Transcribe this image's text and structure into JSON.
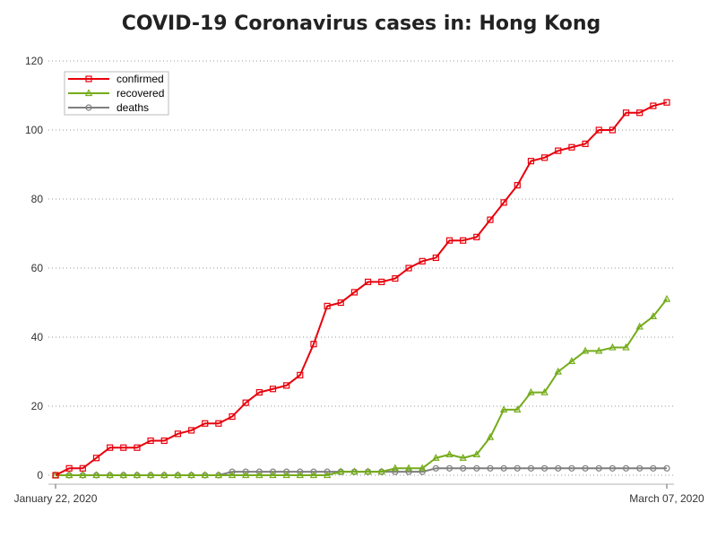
{
  "chart_data": {
    "type": "line",
    "title": "COVID-19 Coronavirus cases in: Hong Kong",
    "xlabel": "",
    "ylabel": "",
    "x_tick_labels": [
      "January 22, 2020",
      "March 07, 2020"
    ],
    "x_count": 46,
    "ylim": [
      0,
      120
    ],
    "yticks": [
      0,
      20,
      40,
      60,
      80,
      100,
      120
    ],
    "grid": "horizontal-dotted",
    "legend_position": "top-left",
    "series": [
      {
        "name": "confirmed",
        "color": "#e8000b",
        "marker": "square",
        "values": [
          0,
          2,
          2,
          5,
          8,
          8,
          8,
          10,
          10,
          12,
          13,
          15,
          15,
          17,
          21,
          24,
          25,
          26,
          29,
          38,
          49,
          50,
          53,
          56,
          56,
          57,
          60,
          62,
          63,
          68,
          68,
          69,
          74,
          79,
          84,
          91,
          92,
          94,
          95,
          96,
          100,
          100,
          105,
          105,
          107,
          108
        ]
      },
      {
        "name": "recovered",
        "color": "#74ac1a",
        "marker": "triangle",
        "values": [
          0,
          0,
          0,
          0,
          0,
          0,
          0,
          0,
          0,
          0,
          0,
          0,
          0,
          0,
          0,
          0,
          0,
          0,
          0,
          0,
          0,
          1,
          1,
          1,
          1,
          2,
          2,
          2,
          5,
          6,
          5,
          6,
          11,
          19,
          19,
          24,
          24,
          30,
          33,
          36,
          36,
          37,
          37,
          43,
          46,
          51
        ]
      },
      {
        "name": "deaths",
        "color": "#7f7f7f",
        "marker": "circle",
        "values": [
          0,
          0,
          0,
          0,
          0,
          0,
          0,
          0,
          0,
          0,
          0,
          0,
          0,
          1,
          1,
          1,
          1,
          1,
          1,
          1,
          1,
          1,
          1,
          1,
          1,
          1,
          1,
          1,
          2,
          2,
          2,
          2,
          2,
          2,
          2,
          2,
          2,
          2,
          2,
          2,
          2,
          2,
          2,
          2,
          2,
          2
        ]
      }
    ]
  }
}
